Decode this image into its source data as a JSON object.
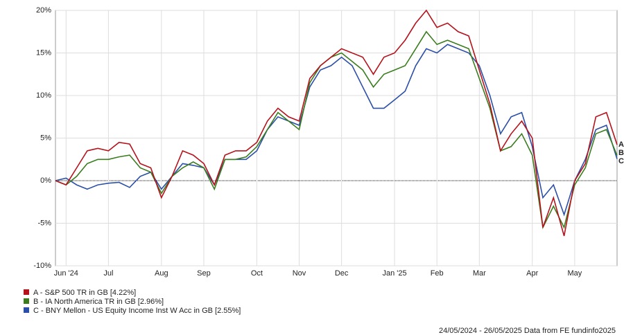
{
  "chart_data": {
    "type": "line",
    "categories": [
      null,
      "Jun '24",
      null,
      null,
      null,
      "Jul",
      null,
      null,
      null,
      null,
      "Aug",
      null,
      null,
      null,
      "Sep",
      null,
      null,
      null,
      null,
      "Oct",
      null,
      null,
      null,
      "Nov",
      null,
      null,
      null,
      "Dec",
      null,
      null,
      null,
      null,
      "Jan '25",
      null,
      null,
      null,
      "Feb",
      null,
      null,
      null,
      "Mar",
      null,
      null,
      null,
      null,
      "Apr",
      null,
      null,
      null,
      "May",
      null,
      null,
      null,
      null
    ],
    "series": [
      {
        "name": "A - S&P 500 TR in GB [4.22%]",
        "tag": "A",
        "color": "#b5121b",
        "values": [
          0,
          -0.5,
          1.5,
          3.5,
          3.8,
          3.5,
          4.5,
          4.3,
          2,
          1.5,
          -2,
          0.5,
          3.5,
          3,
          2,
          -0.5,
          3,
          3.5,
          3.5,
          4.5,
          7,
          8.5,
          7.5,
          7,
          12,
          13.5,
          14.5,
          15.5,
          15,
          14.5,
          12.5,
          14.5,
          15,
          16.5,
          18.5,
          20,
          18,
          18.5,
          17.5,
          17,
          13,
          9,
          3.5,
          5.5,
          7,
          5,
          -5.5,
          -2,
          -6.5,
          0,
          2,
          7.5,
          8,
          4.22
        ]
      },
      {
        "name": "B - IA North America TR in GB [2.96%]",
        "tag": "B",
        "color": "#3a7d1e",
        "values": [
          0,
          -0.5,
          0.5,
          2,
          2.5,
          2.5,
          2.8,
          3,
          1.5,
          1,
          -1.5,
          0.5,
          1.5,
          2.2,
          1.5,
          -1,
          2.5,
          2.5,
          2.8,
          4,
          6,
          8,
          7,
          6,
          11.5,
          13.5,
          14.5,
          15,
          14,
          13,
          11,
          12.5,
          13,
          13.5,
          15.5,
          17.5,
          16,
          16.5,
          16,
          15.5,
          12,
          8.5,
          3.5,
          4,
          5.5,
          3,
          -5.5,
          -3,
          -5.5,
          -0.5,
          1.5,
          5.5,
          6,
          2.96
        ]
      },
      {
        "name": "C - BNY Mellon - US Equity Income Inst W Acc in GB [2.55%]",
        "tag": "C",
        "color": "#2b4fa8",
        "values": [
          0,
          0.3,
          -0.5,
          -1,
          -0.5,
          -0.3,
          -0.2,
          -0.8,
          0.5,
          1,
          -1,
          0.5,
          2,
          1.8,
          1.5,
          -0.5,
          2.5,
          2.5,
          2.5,
          3.5,
          6,
          7.5,
          7,
          6.5,
          11,
          13,
          13.5,
          14.5,
          13.5,
          11,
          8.5,
          8.5,
          9.5,
          10.5,
          13.5,
          15.5,
          15,
          16,
          15.5,
          15,
          13.5,
          10,
          5.5,
          7.5,
          8,
          4,
          -2,
          -0.5,
          -4,
          0,
          2.5,
          6,
          6.5,
          2.55
        ]
      }
    ],
    "ylim": [
      -10,
      20
    ],
    "yticks": [
      {
        "value": -10,
        "label": "-10%"
      },
      {
        "value": -5,
        "label": "-5%"
      },
      {
        "value": 0,
        "label": "0%"
      },
      {
        "value": 5,
        "label": "5%"
      },
      {
        "value": 10,
        "label": "10%"
      },
      {
        "value": 15,
        "label": "15%"
      },
      {
        "value": 20,
        "label": "20%"
      }
    ],
    "grid": true,
    "footer": "24/05/2024 - 26/05/2025 Data from FE fundinfo2025"
  }
}
